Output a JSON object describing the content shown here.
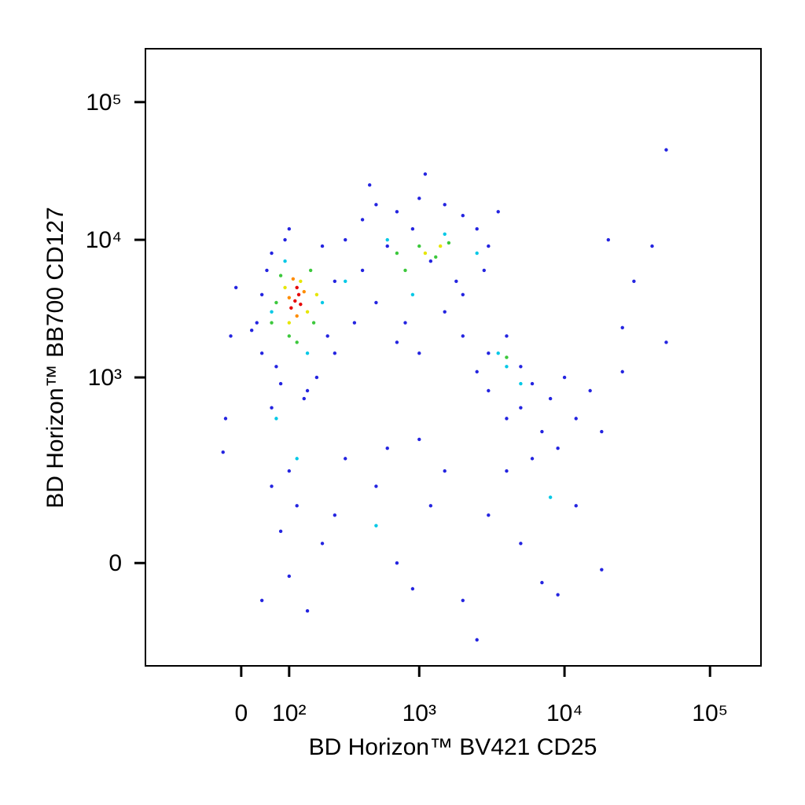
{
  "chart_data": {
    "type": "scatter",
    "xlabel": "BD Horizon™ BV421 CD25",
    "ylabel": "BD Horizon™ BB700 CD127",
    "xscale": "biexponential",
    "yscale": "biexponential",
    "xlim": [
      -260,
      224000
    ],
    "ylim": [
      -243,
      244000
    ],
    "xticks": [
      0,
      {
        "value": 100,
        "label": "10²"
      },
      {
        "value": 1000,
        "label": "10³"
      },
      {
        "value": 10000,
        "label": "10⁴"
      },
      {
        "value": 100000,
        "label": "10⁵"
      }
    ],
    "yticks": [
      0,
      {
        "value": 1000,
        "label": "10³"
      },
      {
        "value": 10000,
        "label": "10⁴"
      },
      {
        "value": 100000,
        "label": "10⁵"
      }
    ],
    "series": [
      {
        "color": "#2424e0",
        "x": [
          30,
          40,
          50,
          60,
          70,
          80,
          90,
          200,
          250,
          220,
          180,
          150,
          40,
          20,
          -20,
          -10,
          100,
          140,
          60,
          250,
          300,
          400,
          500,
          700,
          1000,
          1500,
          2000,
          2500,
          3000,
          2800,
          2000,
          1500,
          800,
          500,
          400,
          600,
          900,
          1200,
          1800,
          350,
          700,
          1000,
          3500,
          450,
          1100,
          2000,
          3000,
          4000,
          5000,
          6000,
          8000,
          10000,
          12000,
          9000,
          7000,
          5000,
          4000,
          3000,
          2500,
          15000,
          18000,
          6000,
          4000,
          60,
          80,
          100,
          120,
          150,
          200,
          300,
          500,
          700,
          900,
          1200,
          1500,
          2000,
          2500,
          3000,
          5000,
          7000,
          9000,
          12000,
          18000,
          40,
          100,
          250,
          600,
          1000,
          -30,
          -35,
          50000,
          40000,
          30000,
          50000,
          25000,
          25000,
          20000
        ],
        "y": [
          2500,
          4000,
          6000,
          8000,
          1200,
          900,
          10000,
          9000,
          5000,
          2000,
          1000,
          800,
          1500,
          2200,
          2000,
          4500,
          12000,
          700,
          600,
          1500,
          10000,
          14000,
          18000,
          16000,
          20000,
          18000,
          15000,
          12000,
          9000,
          6000,
          4000,
          3000,
          2500,
          3500,
          6000,
          9000,
          12000,
          7000,
          5000,
          2500,
          1800,
          1500,
          16000,
          25000,
          30000,
          2000,
          1500,
          2000,
          1200,
          900,
          700,
          1000,
          500,
          300,
          400,
          600,
          500,
          800,
          1100,
          800,
          400,
          250,
          200,
          150,
          50,
          -20,
          100,
          -80,
          30,
          250,
          150,
          0,
          -40,
          100,
          200,
          -60,
          -150,
          80,
          30,
          -30,
          -50,
          100,
          -10,
          -60,
          200,
          80,
          300,
          350,
          500,
          280,
          45000,
          9000,
          5000,
          1800,
          1100,
          2300,
          10000
        ]
      },
      {
        "color": "#00c8e6",
        "x": [
          60,
          90,
          200,
          300,
          600,
          1500,
          2500,
          3500,
          5000,
          150,
          70,
          900,
          8000,
          500,
          4000,
          120
        ],
        "y": [
          3000,
          7000,
          3500,
          5000,
          10000,
          11000,
          8000,
          1500,
          900,
          1500,
          500,
          4000,
          120,
          60,
          1200,
          250
        ]
      },
      {
        "color": "#3cc83c",
        "x": [
          70,
          80,
          100,
          160,
          170,
          700,
          1000,
          1300,
          1600,
          800,
          4000,
          120,
          60
        ],
        "y": [
          3500,
          5500,
          2000,
          6000,
          2500,
          8000,
          9000,
          7500,
          9500,
          6000,
          1400,
          1800,
          2500
        ]
      },
      {
        "color": "#e6e600",
        "x": [
          90,
          130,
          150,
          100,
          180,
          1100,
          1400
        ],
        "y": [
          4500,
          5000,
          3000,
          2500,
          4000,
          8000,
          9000
        ]
      },
      {
        "color": "#ff8c00",
        "x": [
          100,
          140,
          120,
          110
        ],
        "y": [
          3800,
          4200,
          2800,
          5200
        ]
      },
      {
        "color": "#e60000",
        "x": [
          115,
          125,
          105,
          130,
          120
        ],
        "y": [
          3600,
          4000,
          3200,
          3400,
          4500
        ]
      }
    ]
  }
}
